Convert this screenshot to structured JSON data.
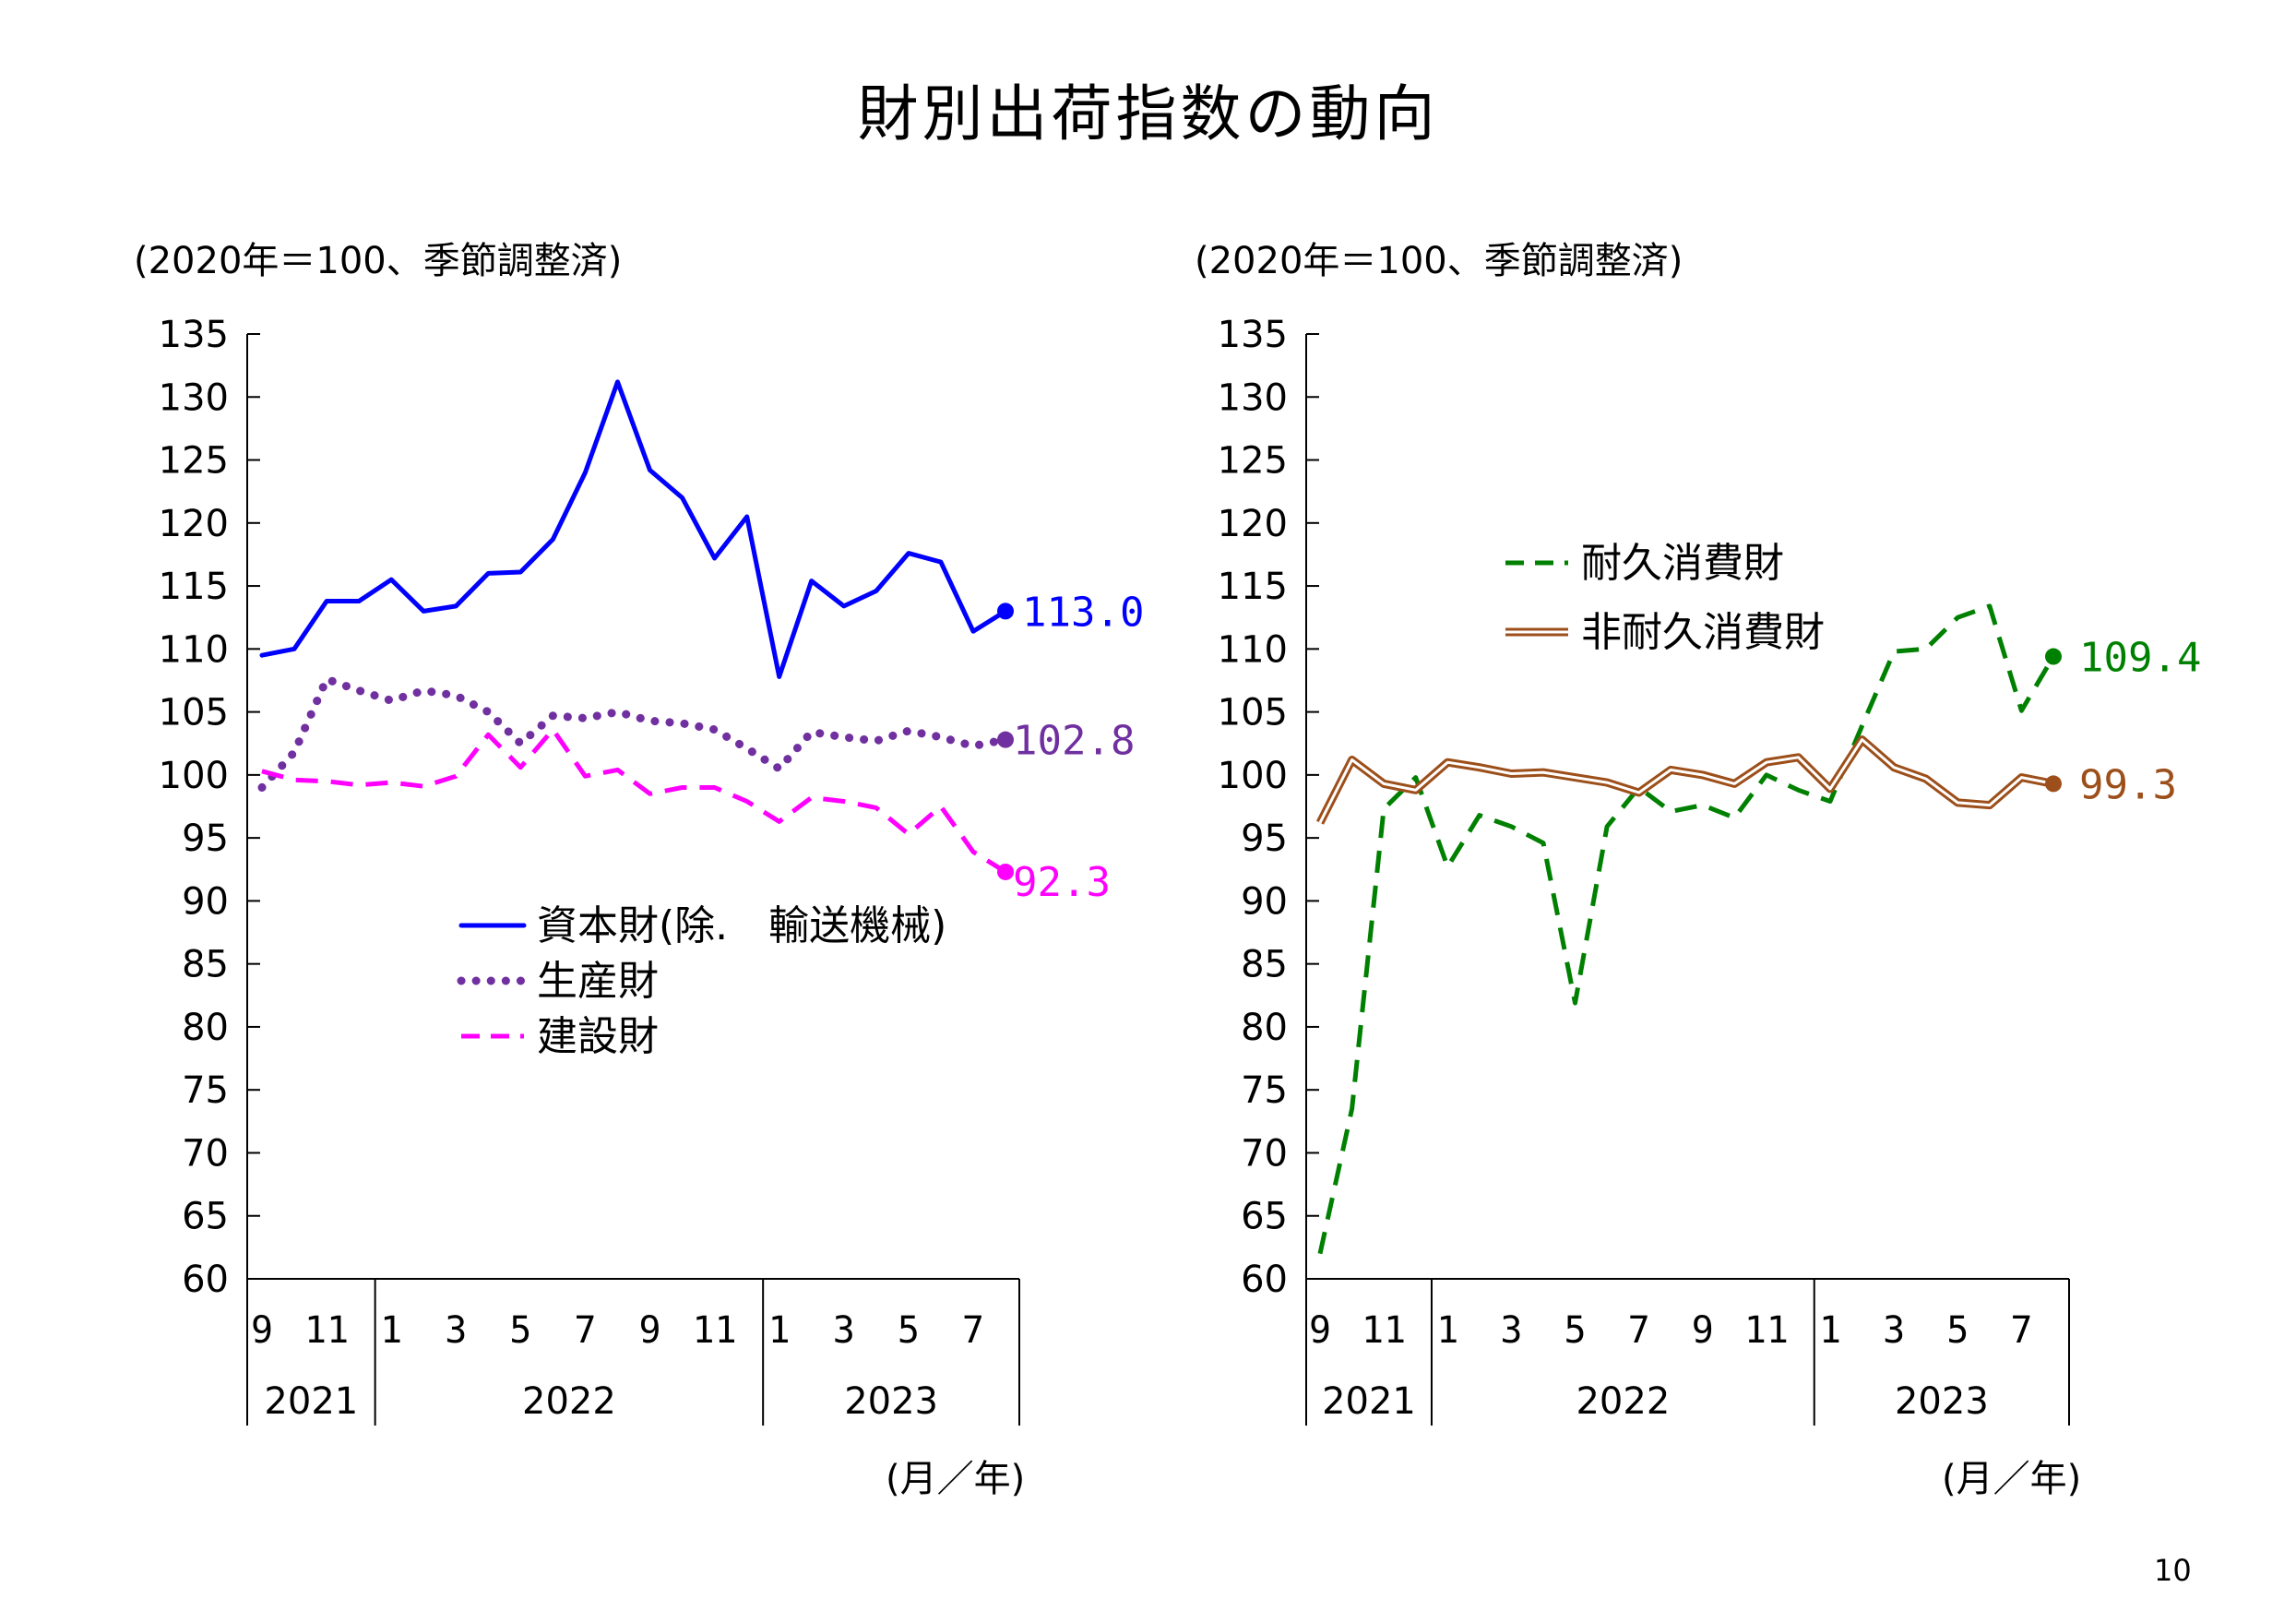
{
  "title": "財別出荷指数の動向",
  "page_number": "10",
  "colors": {
    "capital_goods": "#0000ff",
    "producer_goods": "#7030a0",
    "construction_goods": "#ff00ff",
    "durable_consumer_goods": "#008000",
    "nondurable_consumer_goods": "#9c4f1a"
  },
  "chart_data": [
    {
      "type": "line",
      "unit_label": "(2020年＝100、季節調整済)",
      "x_unit_label": "(月／年)",
      "ylim": [
        60,
        135
      ],
      "yticks": [
        "135",
        "130",
        "125",
        "120",
        "115",
        "110",
        "105",
        "100",
        "95",
        "90",
        "85",
        "80",
        "75",
        "70",
        "65",
        "60"
      ],
      "x": [
        "2021-09",
        "2021-10",
        "2021-11",
        "2021-12",
        "2022-01",
        "2022-02",
        "2022-03",
        "2022-04",
        "2022-05",
        "2022-06",
        "2022-07",
        "2022-08",
        "2022-09",
        "2022-10",
        "2022-11",
        "2022-12",
        "2023-01",
        "2023-02",
        "2023-03",
        "2023-04",
        "2023-05",
        "2023-06",
        "2023-07",
        "2023-08"
      ],
      "month_tick_labels": [
        {
          "label": "9",
          "month": "2021-09"
        },
        {
          "label": "11",
          "month": "2021-11"
        },
        {
          "label": "1",
          "month": "2022-01"
        },
        {
          "label": "3",
          "month": "2022-03"
        },
        {
          "label": "5",
          "month": "2022-05"
        },
        {
          "label": "7",
          "month": "2022-07"
        },
        {
          "label": "9",
          "month": "2022-09"
        },
        {
          "label": "11",
          "month": "2022-11"
        },
        {
          "label": "1",
          "month": "2023-01"
        },
        {
          "label": "3",
          "month": "2023-03"
        },
        {
          "label": "5",
          "month": "2023-05"
        },
        {
          "label": "7",
          "month": "2023-07"
        }
      ],
      "year_labels": [
        "2021",
        "2022",
        "2023"
      ],
      "legend_placement": "center",
      "grid": false,
      "series": [
        {
          "name": "資本財(除.　輸送機械)",
          "style": "solid",
          "color_key": "capital_goods",
          "values": [
            109.5,
            110.0,
            113.8,
            113.8,
            115.5,
            113.0,
            113.4,
            116.0,
            116.1,
            118.7,
            124.0,
            131.2,
            124.2,
            122.0,
            117.2,
            120.5,
            107.8,
            115.4,
            113.4,
            114.6,
            117.6,
            116.9,
            111.4,
            113.0
          ],
          "end_label": "113.0"
        },
        {
          "name": "生産財",
          "style": "dotted",
          "color_key": "producer_goods",
          "values": [
            99.0,
            101.8,
            107.6,
            106.7,
            105.9,
            106.7,
            106.3,
            105.0,
            102.5,
            104.7,
            104.5,
            105.0,
            104.3,
            104.1,
            103.6,
            102.1,
            100.5,
            103.4,
            103.0,
            102.7,
            103.5,
            103.0,
            102.3,
            102.8
          ],
          "end_label": "102.8"
        },
        {
          "name": "建設財",
          "style": "dashed",
          "color_key": "construction_goods",
          "values": [
            100.3,
            99.6,
            99.5,
            99.2,
            99.4,
            99.1,
            99.9,
            103.2,
            100.6,
            103.6,
            99.9,
            100.4,
            98.5,
            99.0,
            99.0,
            97.9,
            96.3,
            98.2,
            97.9,
            97.4,
            95.3,
            97.5,
            93.9,
            92.3
          ],
          "end_label": "92.3"
        }
      ]
    },
    {
      "type": "line",
      "unit_label": "(2020年＝100、季節調整済)",
      "x_unit_label": "(月／年)",
      "ylim": [
        60,
        135
      ],
      "yticks": [
        "135",
        "130",
        "125",
        "120",
        "115",
        "110",
        "105",
        "100",
        "95",
        "90",
        "85",
        "80",
        "75",
        "70",
        "65",
        "60"
      ],
      "x": [
        "2021-09",
        "2021-10",
        "2021-11",
        "2021-12",
        "2022-01",
        "2022-02",
        "2022-03",
        "2022-04",
        "2022-05",
        "2022-06",
        "2022-07",
        "2022-08",
        "2022-09",
        "2022-10",
        "2022-11",
        "2022-12",
        "2023-01",
        "2023-02",
        "2023-03",
        "2023-04",
        "2023-05",
        "2023-06",
        "2023-07",
        "2023-08"
      ],
      "month_tick_labels": [
        {
          "label": "9",
          "month": "2021-09"
        },
        {
          "label": "11",
          "month": "2021-11"
        },
        {
          "label": "1",
          "month": "2022-01"
        },
        {
          "label": "3",
          "month": "2022-03"
        },
        {
          "label": "5",
          "month": "2022-05"
        },
        {
          "label": "7",
          "month": "2022-07"
        },
        {
          "label": "9",
          "month": "2022-09"
        },
        {
          "label": "11",
          "month": "2022-11"
        },
        {
          "label": "1",
          "month": "2023-01"
        },
        {
          "label": "3",
          "month": "2023-03"
        },
        {
          "label": "5",
          "month": "2023-05"
        },
        {
          "label": "7",
          "month": "2023-07"
        }
      ],
      "year_labels": [
        "2021",
        "2022",
        "2023"
      ],
      "legend_placement": "top-right",
      "grid": false,
      "series": [
        {
          "name": "耐久消費財",
          "style": "dashed",
          "color_key": "durable_consumer_goods",
          "values": [
            62.0,
            73.5,
            97.3,
            99.8,
            92.7,
            96.8,
            95.9,
            94.6,
            81.9,
            95.9,
            99.0,
            97.1,
            97.6,
            96.6,
            100.0,
            98.8,
            97.9,
            103.9,
            109.8,
            110.0,
            112.5,
            113.4,
            105.1,
            109.4
          ],
          "end_label": "109.4"
        },
        {
          "name": "非耐久消費財",
          "style": "double",
          "color_key": "nondurable_consumer_goods",
          "values": [
            96.2,
            101.2,
            99.3,
            98.8,
            101.0,
            100.6,
            100.1,
            100.2,
            99.8,
            99.4,
            98.6,
            100.4,
            100.0,
            99.3,
            101.0,
            101.4,
            98.9,
            102.8,
            100.6,
            99.7,
            97.8,
            97.6,
            99.8,
            99.3
          ],
          "end_label": "99.3"
        }
      ]
    }
  ]
}
